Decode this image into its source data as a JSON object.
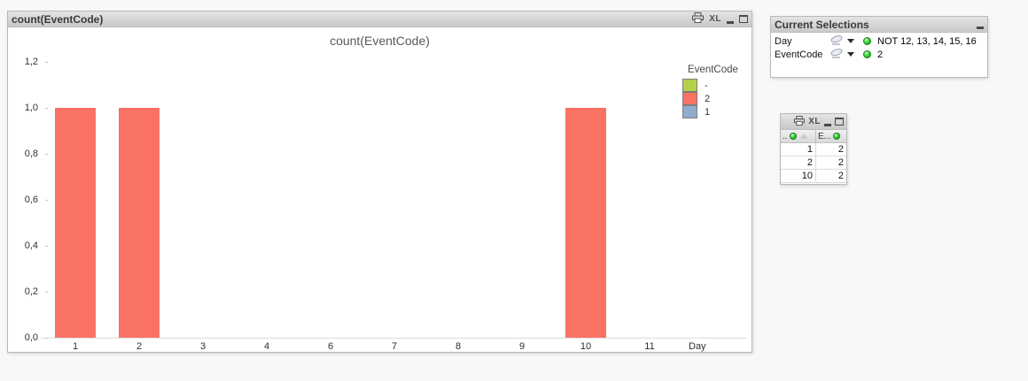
{
  "chart_window": {
    "caption": "count(EventCode)",
    "excel_icon_label": "XL"
  },
  "chart_data": {
    "type": "bar",
    "title": "count(EventCode)",
    "categories": [
      "1",
      "2",
      "3",
      "4",
      "6",
      "7",
      "8",
      "9",
      "10",
      "11"
    ],
    "values": [
      1,
      1,
      0,
      0,
      0,
      0,
      0,
      0,
      1,
      0
    ],
    "xlabel": "Day",
    "ylabel": "",
    "ylim": [
      0,
      1.2
    ],
    "ytick_labels": [
      "1,2",
      "1,0",
      "0,8",
      "0,6",
      "0,4",
      "0,2",
      "0,0"
    ],
    "decimal_separator": ",",
    "grid": false,
    "bar_color": "#f97264",
    "legend": {
      "title": "EventCode",
      "position": "right-top",
      "items": [
        {
          "label": "-",
          "color": "#b4d04b"
        },
        {
          "label": "2",
          "color": "#f97264"
        },
        {
          "label": "1",
          "color": "#90abd0"
        }
      ]
    }
  },
  "current_selections": {
    "title": "Current Selections",
    "rows": [
      {
        "field": "Day",
        "value": "NOT 12, 13, 14, 15, 16"
      },
      {
        "field": "EventCode",
        "value": "2"
      }
    ]
  },
  "table_window": {
    "excel_icon_label": "XL",
    "columns": [
      {
        "label": "..",
        "selected": true,
        "sort": "asc"
      },
      {
        "label": "E...",
        "selected": true
      }
    ],
    "rows": [
      [
        "1",
        "2"
      ],
      [
        "2",
        "2"
      ],
      [
        "10",
        "2"
      ]
    ]
  }
}
